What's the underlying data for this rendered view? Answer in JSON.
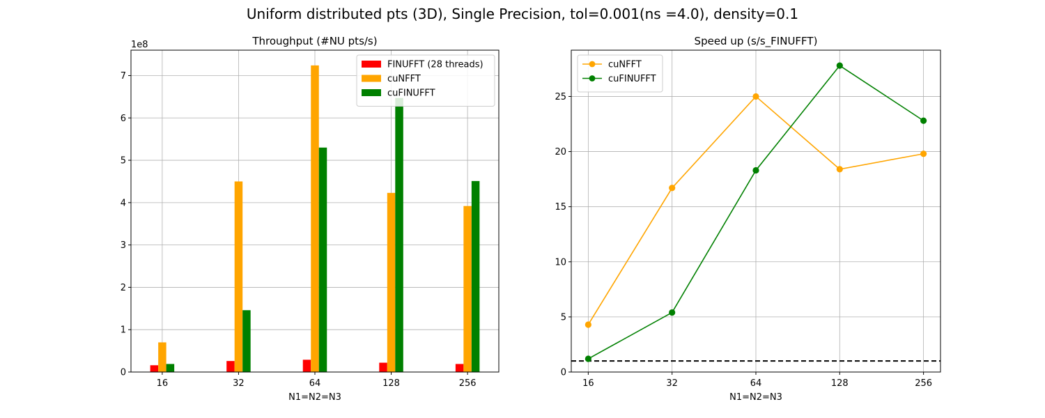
{
  "figure": {
    "suptitle": "Uniform distributed pts (3D), Single Precision, tol=0.001(ns =4.0), density=0.1"
  },
  "chart_data": [
    {
      "type": "bar",
      "title": "Throughput (#NU pts/s)",
      "xlabel": "N1=N2=N3",
      "ylabel": "",
      "offset_label": "1e8",
      "categories": [
        "16",
        "32",
        "64",
        "128",
        "256"
      ],
      "ylim": [
        0,
        7.6
      ],
      "yticks": [
        0,
        1,
        2,
        3,
        4,
        5,
        6,
        7
      ],
      "grid": true,
      "legend": "top-right",
      "series": [
        {
          "name": "FINUFFT (28 threads)",
          "color": "#ff0000",
          "values": [
            0.16,
            0.26,
            0.29,
            0.22,
            0.19
          ]
        },
        {
          "name": "cuNFFT",
          "color": "#ffa500",
          "values": [
            0.7,
            4.5,
            7.24,
            4.23,
            3.92
          ]
        },
        {
          "name": "cuFINUFFT",
          "color": "#008000",
          "values": [
            0.19,
            1.46,
            5.3,
            6.47,
            4.51
          ]
        }
      ]
    },
    {
      "type": "line",
      "title": "Speed up (s/s_FINUFFT)",
      "xlabel": "N1=N2=N3",
      "ylabel": "",
      "categories": [
        "16",
        "32",
        "64",
        "128",
        "256"
      ],
      "ylim": [
        0,
        29.2
      ],
      "yticks": [
        0,
        5,
        10,
        15,
        20,
        25
      ],
      "grid": true,
      "legend": "top-left",
      "reference_line": {
        "y": 1,
        "color": "#000000",
        "style": "dashed"
      },
      "series": [
        {
          "name": "cuNFFT",
          "color": "#ffa500",
          "values": [
            4.3,
            16.7,
            25.0,
            18.4,
            19.8
          ]
        },
        {
          "name": "cuFINUFFT",
          "color": "#008000",
          "values": [
            1.2,
            5.4,
            18.3,
            27.8,
            22.8
          ]
        }
      ]
    }
  ]
}
